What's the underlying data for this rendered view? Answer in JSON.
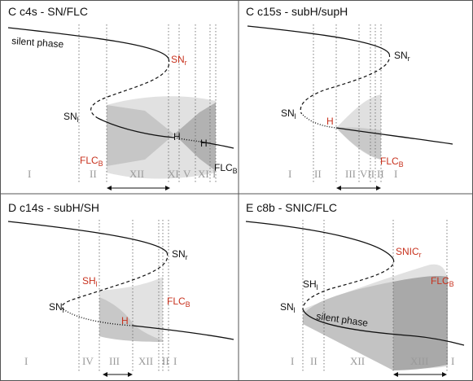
{
  "panels": [
    {
      "title": "C   c4s - SN/FLC",
      "labels": {
        "silent": "silent phase",
        "snr": "SN",
        "snr_sub": "r",
        "snl": "SN",
        "snl_sub": "l",
        "h1": "H",
        "h2": "H",
        "flcb_left": "FLC",
        "flcb_left_sub": "B",
        "flcb_right": "FLC",
        "flcb_right_sub": "B"
      },
      "regions": [
        "I",
        "II",
        "XII",
        "XI",
        "V",
        "XI",
        "I"
      ]
    },
    {
      "title": "C   c15s - subH/supH",
      "labels": {
        "snr": "SN",
        "snr_sub": "r",
        "snl": "SN",
        "snl_sub": "l",
        "h": "H",
        "flcb": "FLC",
        "flcb_sub": "B"
      },
      "regions": [
        "I",
        "II",
        "III",
        "VII",
        "II",
        "I"
      ]
    },
    {
      "title": "D   c14s - subH/SH",
      "labels": {
        "snr": "SN",
        "snr_sub": "r",
        "snl": "SN",
        "snl_sub": "l",
        "shl": "SH",
        "shl_sub": "l",
        "h": "H",
        "flcb": "FLC",
        "flcb_sub": "B"
      },
      "regions": [
        "I",
        "IV",
        "III",
        "XII",
        "II",
        "I"
      ]
    },
    {
      "title": "E   c8b - SNIC/FLC",
      "labels": {
        "snicr": "SNIC",
        "snicr_sub": "r",
        "shl": "SH",
        "shl_sub": "l",
        "snl": "SN",
        "snl_sub": "l",
        "silent": "silent phase",
        "flcb": "FLC",
        "flcb_sub": "B"
      },
      "regions": [
        "I",
        "II",
        "XII",
        "XIII",
        "I"
      ]
    }
  ]
}
